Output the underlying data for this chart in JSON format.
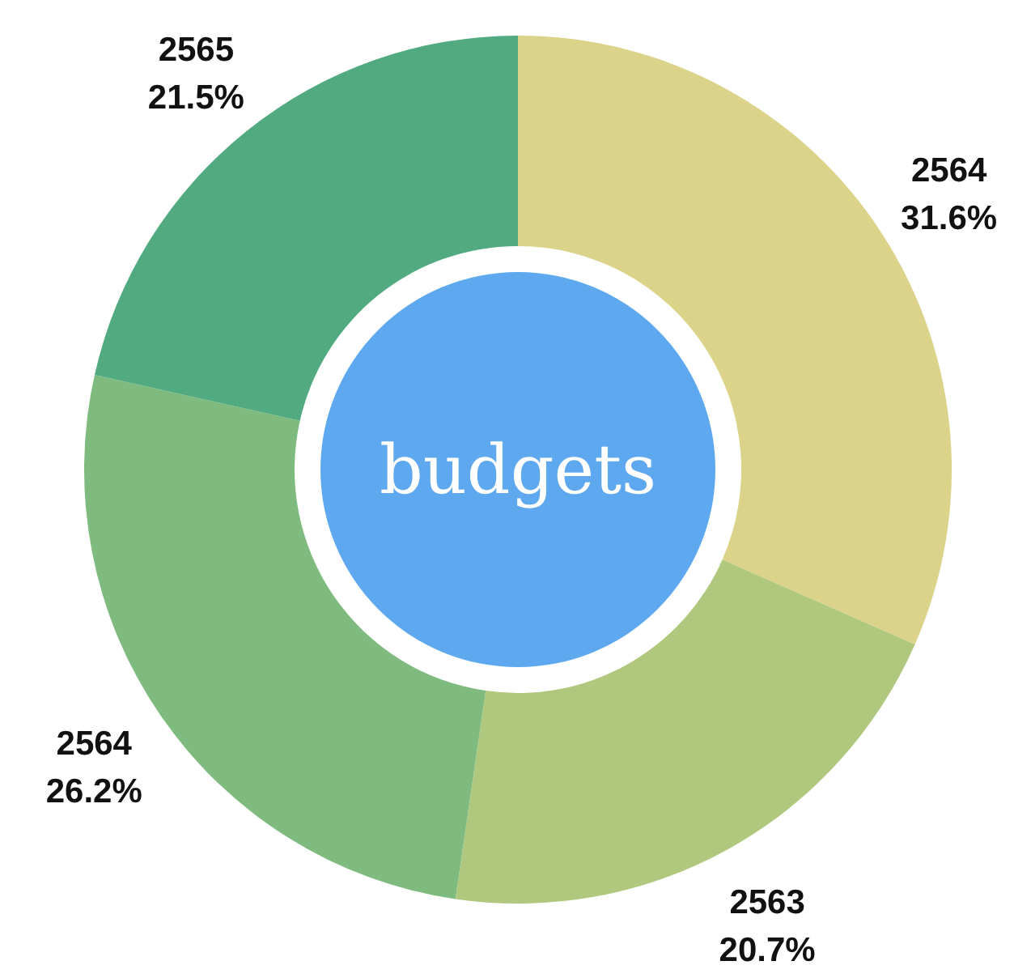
{
  "chart_data": {
    "type": "donut",
    "title": "budgets",
    "categories": [
      "2564",
      "2563",
      "2564",
      "2565"
    ],
    "values": [
      31.6,
      20.7,
      26.2,
      21.5
    ],
    "value_labels": [
      "31.6%",
      "20.7%",
      "26.2%",
      "21.5%"
    ],
    "colors": [
      "#dbd38a",
      "#b0c87e",
      "#7fbb7e",
      "#52ab80"
    ]
  }
}
